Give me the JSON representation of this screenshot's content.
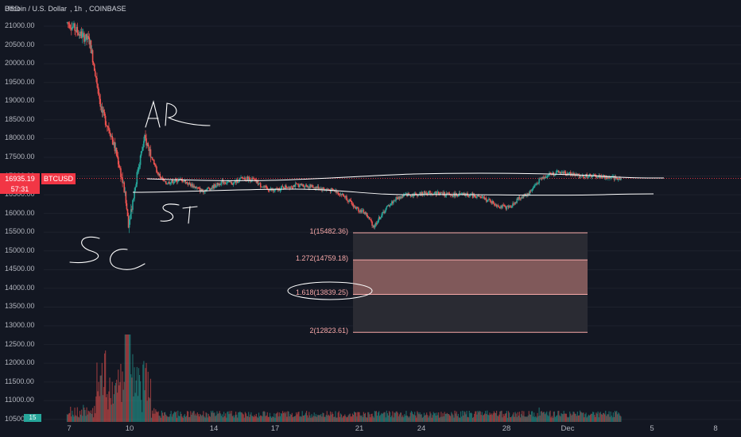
{
  "header": {
    "symbol": "Bitcoin / U.S. Dollar",
    "interval": "1h",
    "exchange": "COINBASE",
    "currency": "USD"
  },
  "price_label": {
    "value": "16935.19",
    "countdown": "57:31",
    "symbol": "BTCUSD"
  },
  "volume_label": "15",
  "colors": {
    "background": "#131722",
    "up": "#26a69a",
    "down": "#ef5350",
    "fib_fill": "#f3a8a0",
    "fib_line": "#f7a8a8",
    "drawing": "#ffffff",
    "price_tag": "#f23645"
  },
  "annotations": {
    "ar": "AR",
    "st": "ST",
    "sc": "SC"
  },
  "fib_levels": [
    {
      "ratio": "1",
      "label": "1(15482.36)",
      "price": 15482.36
    },
    {
      "ratio": "1.272",
      "label": "1.272(14759.18)",
      "price": 14759.18
    },
    {
      "ratio": "1.618",
      "label": "1.618(13839.25)",
      "price": 13839.25
    },
    {
      "ratio": "2",
      "label": "2(12823.61)",
      "price": 12823.61
    }
  ],
  "chart_data": {
    "type": "candlestick",
    "title": "Bitcoin / U.S. Dollar, 1h, COINBASE",
    "y_ticks": [
      "21000.00",
      "20500.00",
      "20000.00",
      "19500.00",
      "19000.00",
      "18500.00",
      "18000.00",
      "17500.00",
      "17000.00",
      "16500.00",
      "16000.00",
      "15500.00",
      "15000.00",
      "14500.00",
      "14000.00",
      "13500.00",
      "13000.00",
      "12500.00",
      "12000.00",
      "11500.00",
      "11000.00",
      "10500.00"
    ],
    "x_ticks": [
      "7",
      "10",
      "14",
      "17",
      "21",
      "24",
      "28",
      "Dec",
      "5",
      "8"
    ],
    "ylim": [
      10450,
      21150
    ],
    "close_path": [
      [
        6,
        21150
      ],
      [
        7,
        21080
      ],
      [
        7.5,
        20800
      ],
      [
        8,
        20600
      ],
      [
        8.3,
        19700
      ],
      [
        8.6,
        18700
      ],
      [
        9,
        18200
      ],
      [
        9.4,
        17400
      ],
      [
        9.7,
        16600
      ],
      [
        9.9,
        15750
      ],
      [
        10.1,
        16300
      ],
      [
        10.4,
        17300
      ],
      [
        10.7,
        18000
      ],
      [
        11,
        17600
      ],
      [
        11.3,
        17100
      ],
      [
        11.7,
        16800
      ],
      [
        12,
        16850
      ],
      [
        12.5,
        16900
      ],
      [
        13,
        16750
      ],
      [
        13.5,
        16600
      ],
      [
        14,
        16700
      ],
      [
        14.5,
        16850
      ],
      [
        15,
        16800
      ],
      [
        15.5,
        16950
      ],
      [
        16,
        16900
      ],
      [
        16.5,
        16700
      ],
      [
        17,
        16600
      ],
      [
        17.5,
        16700
      ],
      [
        18,
        16750
      ],
      [
        18.5,
        16750
      ],
      [
        19,
        16700
      ],
      [
        19.5,
        16650
      ],
      [
        20,
        16600
      ],
      [
        20.5,
        16450
      ],
      [
        21,
        16150
      ],
      [
        21.5,
        16000
      ],
      [
        21.9,
        15650
      ],
      [
        22.2,
        15900
      ],
      [
        22.6,
        16200
      ],
      [
        23,
        16400
      ],
      [
        23.5,
        16500
      ],
      [
        24,
        16500
      ],
      [
        24.5,
        16550
      ],
      [
        25,
        16550
      ],
      [
        25.5,
        16500
      ],
      [
        26,
        16500
      ],
      [
        26.5,
        16500
      ],
      [
        27,
        16450
      ],
      [
        27.5,
        16350
      ],
      [
        28,
        16200
      ],
      [
        28.5,
        16150
      ],
      [
        29,
        16400
      ],
      [
        29.5,
        16550
      ],
      [
        30,
        16900
      ],
      [
        30.5,
        17050
      ],
      [
        31,
        17100
      ],
      [
        31.5,
        17050
      ],
      [
        32,
        17000
      ],
      [
        32.5,
        17000
      ],
      [
        33,
        16980
      ],
      [
        33.5,
        16950
      ],
      [
        34,
        16935
      ]
    ],
    "volume_range": [
      0,
      800
    ]
  }
}
